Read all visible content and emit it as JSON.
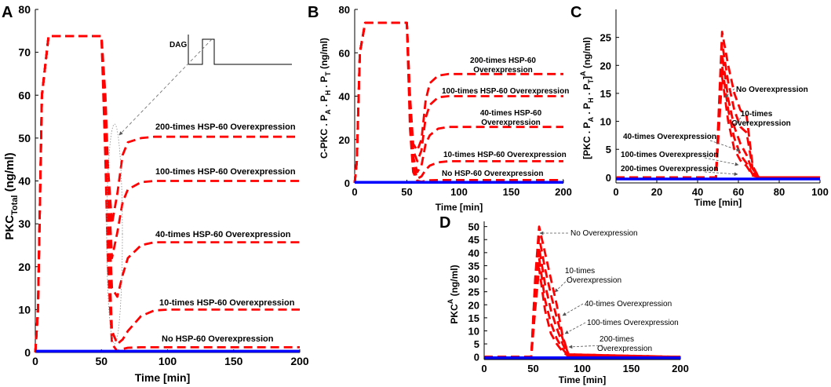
{
  "panels": {
    "A": {
      "letter": "A",
      "ylabel": "PKC",
      "ylabel_sub": "Total",
      "ylabel_unit": " (ng/ml)",
      "xlabel": "Time [min]"
    },
    "B": {
      "letter": "B",
      "ylabel": "C-PKC . P",
      "ylabel_subs": [
        "A",
        "H",
        "T"
      ],
      "ylabel_unit": " (ng/ml)",
      "xlabel": "Time [min]"
    },
    "C": {
      "letter": "C",
      "ylabel": "[PKC . P",
      "ylabel_subs": [
        "A",
        "H",
        "T"
      ],
      "ylabel_sup": "A",
      "ylabel_unit": " (ng/ml)",
      "xlabel": "Time [min]"
    },
    "D": {
      "letter": "D",
      "ylabel": "PKC",
      "ylabel_sup": "A",
      "ylabel_unit": " (ng/ml)",
      "xlabel": "Time [min]"
    }
  },
  "inset": {
    "label": "DAG"
  },
  "annotations": {
    "A": [
      "200-times HSP-60 Overexpression",
      "100-times HSP-60 Overexpression",
      "40-times HSP-60 Overexpression",
      "10-times HSP-60 Overexpression",
      "No HSP-60 Overexpression"
    ],
    "B": [
      "200-times HSP-60",
      "Overexpression",
      "100-times HSP-60 Overexpression",
      "40-times HSP-60",
      "Overexpression",
      "10-times HSP-60 Overexpression",
      "No HSP-60 Overexpression"
    ],
    "C": [
      "No Overexpression",
      "10-times",
      "Overexpression",
      "40-times Overexpression",
      "100-times Overexpression",
      "200-times Overexpression"
    ],
    "D": [
      "No Overexpression",
      "10-times",
      "Overexpression",
      "40-times Overexpression",
      "100-times Overexpression",
      "200-times",
      "Overexpression"
    ]
  },
  "colors": {
    "series": "#ff0000",
    "baseline": "#0000ff",
    "axis": "#000000"
  },
  "chart_data": [
    {
      "panel": "A",
      "type": "line",
      "xlabel": "Time [min]",
      "ylabel": "PKC_Total (ng/ml)",
      "xlim": [
        0,
        200
      ],
      "ylim": [
        0,
        80
      ],
      "xticks": [
        0,
        50,
        100,
        150,
        200
      ],
      "yticks": [
        0,
        10,
        20,
        30,
        40,
        50,
        60,
        70,
        80
      ],
      "series": [
        {
          "name": "200-times HSP-60 Overexpression",
          "x": [
            0,
            2,
            5,
            10,
            50,
            53,
            55,
            58,
            62,
            66,
            70,
            80,
            90,
            100,
            200
          ],
          "y": [
            0,
            10,
            60,
            73.8,
            73.8,
            60,
            43,
            30,
            37,
            46,
            49,
            50,
            50.3,
            50.3,
            50.3
          ]
        },
        {
          "name": "100-times HSP-60 Overexpression",
          "x": [
            0,
            2,
            5,
            10,
            50,
            53,
            55,
            58,
            62,
            66,
            70,
            80,
            90,
            100,
            200
          ],
          "y": [
            0,
            10,
            60,
            73.8,
            73.8,
            58,
            40,
            22,
            28,
            35,
            38,
            39.7,
            40,
            40,
            40
          ]
        },
        {
          "name": "40-times HSP-60 Overexpression",
          "x": [
            0,
            2,
            5,
            10,
            50,
            53,
            55,
            58,
            62,
            66,
            70,
            80,
            90,
            100,
            200
          ],
          "y": [
            0,
            10,
            60,
            73.8,
            73.8,
            55,
            35,
            15,
            13,
            18,
            22,
            25,
            25.7,
            25.7,
            25.7
          ]
        },
        {
          "name": "10-times HSP-60 Overexpression",
          "x": [
            0,
            2,
            5,
            10,
            50,
            53,
            55,
            58,
            62,
            66,
            70,
            80,
            90,
            100,
            200
          ],
          "y": [
            0,
            10,
            60,
            73.8,
            73.8,
            50,
            28,
            5,
            2,
            3,
            5,
            8.5,
            9.8,
            10,
            10
          ]
        },
        {
          "name": "No HSP-60 Overexpression",
          "x": [
            0,
            2,
            5,
            10,
            50,
            53,
            55,
            58,
            62,
            66,
            70,
            80,
            90,
            100,
            200
          ],
          "y": [
            0,
            10,
            60,
            73.8,
            73.8,
            45,
            20,
            2,
            0.3,
            0.8,
            1.1,
            1.2,
            1.2,
            1.2,
            1.2
          ]
        },
        {
          "name": "baseline",
          "x": [
            0,
            200
          ],
          "y": [
            0.3,
            0.3
          ]
        }
      ]
    },
    {
      "panel": "B",
      "type": "line",
      "xlabel": "Time [min]",
      "ylabel": "C-PKC . P_A . P_H . P_T (ng/ml)",
      "xlim": [
        0,
        200
      ],
      "ylim": [
        0,
        80
      ],
      "xticks": [
        0,
        50,
        100,
        150,
        200
      ],
      "yticks": [
        0,
        20,
        40,
        60,
        80
      ],
      "series": [
        {
          "name": "200-times HSP-60 Overexpression",
          "x": [
            0,
            2,
            5,
            10,
            50,
            53,
            56,
            60,
            64,
            68,
            72,
            80,
            90,
            100,
            200
          ],
          "y": [
            0,
            10,
            60,
            73.8,
            73.8,
            40,
            18,
            15,
            20,
            38,
            46,
            49.5,
            50.2,
            50.2,
            50.2
          ]
        },
        {
          "name": "100-times HSP-60 Overexpression",
          "x": [
            0,
            2,
            5,
            10,
            50,
            53,
            56,
            60,
            64,
            68,
            72,
            80,
            90,
            100,
            200
          ],
          "y": [
            0,
            10,
            60,
            73.8,
            73.8,
            38,
            15,
            10,
            15,
            30,
            36,
            39.5,
            40,
            40,
            40
          ]
        },
        {
          "name": "40-times HSP-60 Overexpression",
          "x": [
            0,
            2,
            5,
            10,
            50,
            53,
            56,
            60,
            64,
            68,
            72,
            80,
            90,
            100,
            200
          ],
          "y": [
            0,
            10,
            60,
            73.8,
            73.8,
            35,
            12,
            5,
            8,
            18,
            22,
            25,
            25.8,
            25.8,
            25.8
          ]
        },
        {
          "name": "10-times HSP-60 Overexpression",
          "x": [
            0,
            2,
            5,
            10,
            50,
            53,
            56,
            60,
            64,
            68,
            72,
            80,
            90,
            100,
            200
          ],
          "y": [
            0,
            10,
            60,
            73.8,
            73.8,
            30,
            8,
            2,
            3,
            6,
            8,
            9.5,
            10,
            10,
            10
          ]
        },
        {
          "name": "No HSP-60 Overexpression",
          "x": [
            0,
            2,
            5,
            10,
            50,
            53,
            56,
            60,
            64,
            68,
            72,
            80,
            90,
            100,
            200
          ],
          "y": [
            0,
            10,
            60,
            73.8,
            73.8,
            25,
            5,
            1,
            0.5,
            1,
            1.2,
            1.3,
            1.3,
            1.3,
            1.3
          ]
        },
        {
          "name": "baseline",
          "x": [
            0,
            200
          ],
          "y": [
            0.3,
            0.3
          ]
        }
      ]
    },
    {
      "panel": "C",
      "type": "line",
      "xlabel": "Time [min]",
      "ylabel": "[PKC . P_A . P_H . P_T]^A (ng/ml)",
      "xlim": [
        0,
        100
      ],
      "ylim": [
        -1,
        30
      ],
      "xticks": [
        0,
        20,
        40,
        60,
        80,
        100
      ],
      "yticks": [
        0,
        5,
        10,
        15,
        20,
        25
      ],
      "series": [
        {
          "name": "No Overexpression",
          "x": [
            0,
            49,
            52,
            55,
            58,
            61,
            64,
            67,
            70,
            100
          ],
          "y": [
            0,
            0,
            26,
            20,
            15,
            12,
            11,
            2,
            0,
            0
          ]
        },
        {
          "name": "10-times Overexpression",
          "x": [
            0,
            49,
            52,
            55,
            58,
            61,
            64,
            67,
            70,
            100
          ],
          "y": [
            0,
            0,
            24,
            17,
            12,
            9,
            8,
            1.5,
            0,
            0
          ]
        },
        {
          "name": "40-times Overexpression",
          "x": [
            0,
            49,
            52,
            55,
            58,
            61,
            64,
            67,
            70,
            100
          ],
          "y": [
            0,
            0,
            22,
            14,
            9,
            6,
            4,
            1,
            0,
            0
          ]
        },
        {
          "name": "100-times Overexpression",
          "x": [
            0,
            49,
            52,
            55,
            58,
            61,
            64,
            67,
            70,
            100
          ],
          "y": [
            0,
            0,
            20,
            12,
            7,
            4,
            2.5,
            0.5,
            0,
            0
          ]
        },
        {
          "name": "200-times Overexpression",
          "x": [
            0,
            49,
            52,
            55,
            58,
            61,
            64,
            67,
            70,
            100
          ],
          "y": [
            0,
            0,
            18,
            10,
            5,
            3,
            2,
            0.3,
            0,
            0
          ]
        },
        {
          "name": "baseline",
          "x": [
            0,
            100
          ],
          "y": [
            -0.3,
            -0.3
          ]
        }
      ]
    },
    {
      "panel": "D",
      "type": "line",
      "xlabel": "Time [min]",
      "ylabel": "PKC^A (ng/ml)",
      "xlim": [
        0,
        200
      ],
      "ylim": [
        -1,
        52
      ],
      "xticks": [
        0,
        50,
        100,
        150,
        200
      ],
      "yticks": [
        0,
        5,
        10,
        15,
        20,
        25,
        30,
        35,
        40,
        45,
        50
      ],
      "series": [
        {
          "name": "No Overexpression",
          "x": [
            0,
            48,
            52,
            56,
            62,
            68,
            74,
            80,
            86,
            200
          ],
          "y": [
            0,
            0,
            30,
            50,
            40,
            30,
            20,
            8,
            1,
            0
          ]
        },
        {
          "name": "10-times Overexpression",
          "x": [
            0,
            48,
            52,
            56,
            62,
            68,
            74,
            80,
            86,
            200
          ],
          "y": [
            0,
            0,
            28,
            46,
            34,
            24,
            15,
            7,
            1,
            0
          ]
        },
        {
          "name": "40-times Overexpression",
          "x": [
            0,
            48,
            52,
            56,
            62,
            68,
            74,
            80,
            86,
            200
          ],
          "y": [
            0,
            0,
            25,
            42,
            28,
            18,
            11,
            5,
            0.5,
            0
          ]
        },
        {
          "name": "100-times Overexpression",
          "x": [
            0,
            48,
            52,
            56,
            62,
            68,
            74,
            80,
            86,
            200
          ],
          "y": [
            0,
            0,
            22,
            38,
            22,
            13,
            7,
            3,
            0.3,
            0
          ]
        },
        {
          "name": "200-times Overexpression",
          "x": [
            0,
            48,
            52,
            56,
            62,
            68,
            74,
            80,
            86,
            200
          ],
          "y": [
            0,
            0,
            18,
            34,
            18,
            9,
            5,
            2,
            0.2,
            0
          ]
        },
        {
          "name": "baseline",
          "x": [
            0,
            200
          ],
          "y": [
            -0.3,
            -0.3
          ]
        }
      ]
    }
  ]
}
